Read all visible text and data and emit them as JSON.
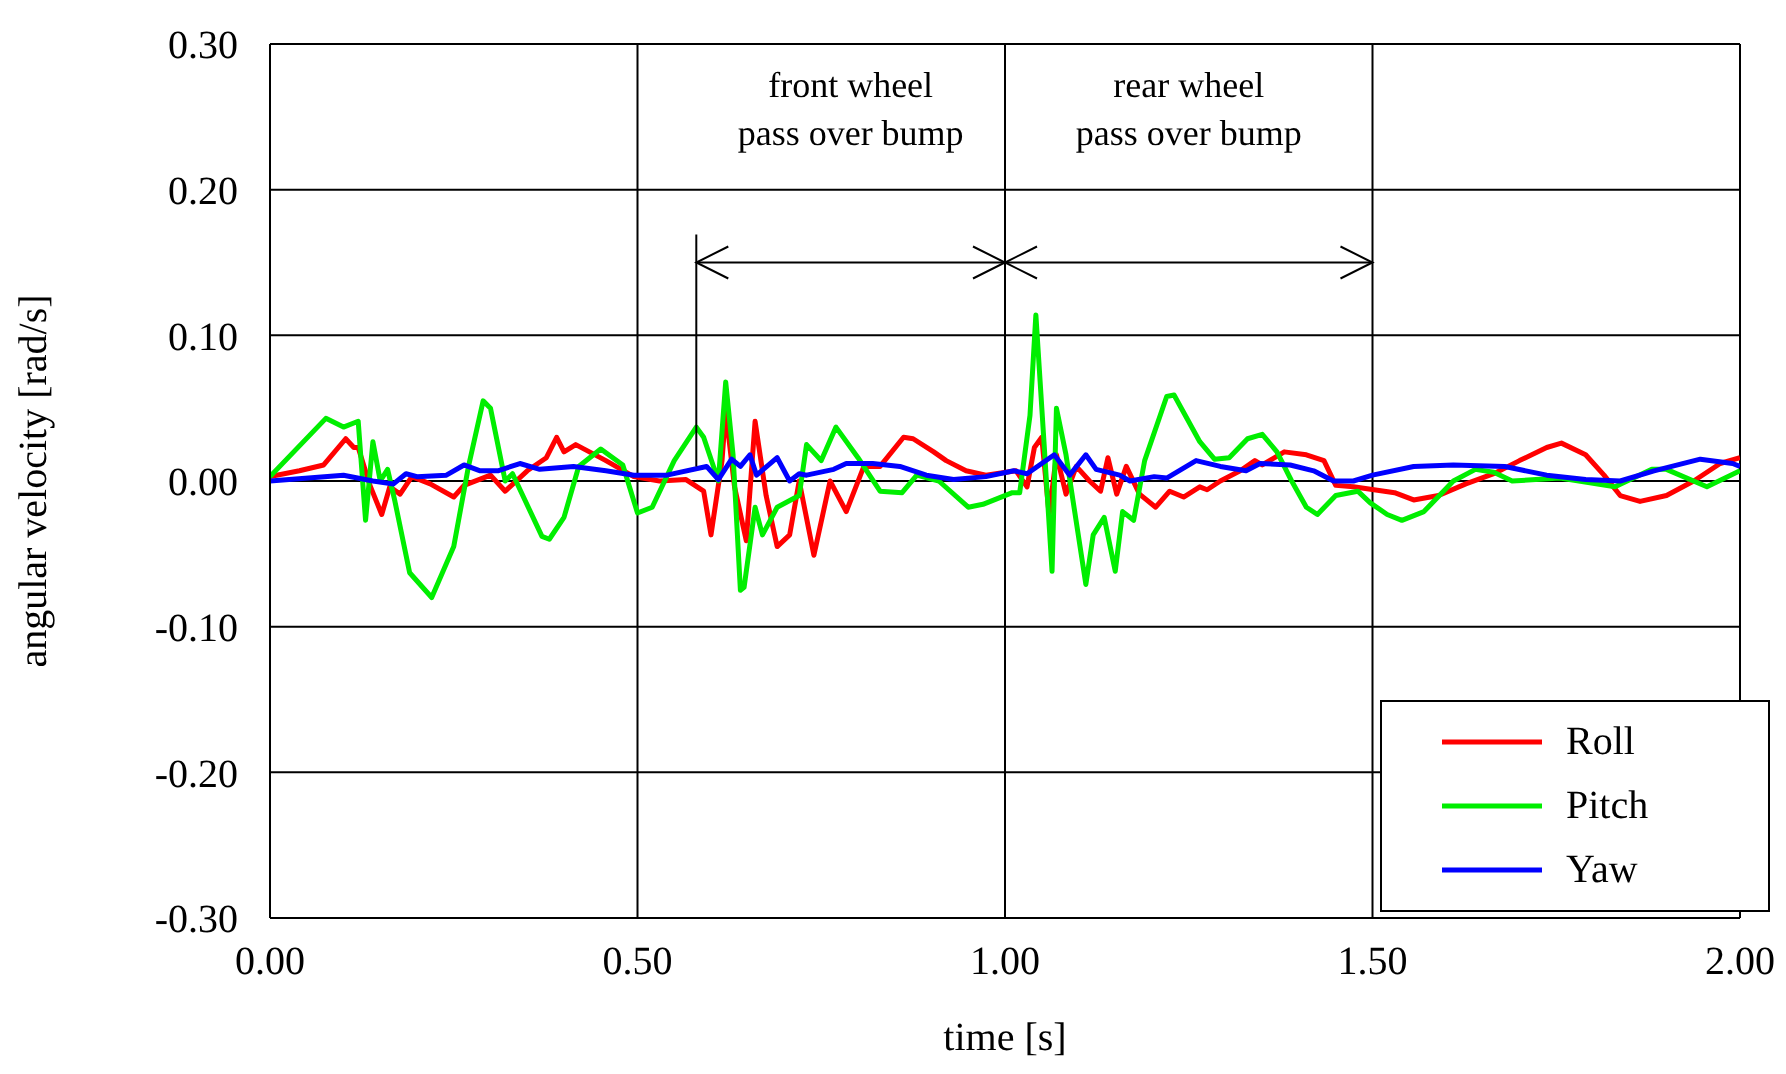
{
  "chart_data": {
    "type": "line",
    "xlabel": "time [s]",
    "ylabel": "angular velocity [rad/s]",
    "xlim": [
      0,
      2
    ],
    "ylim": [
      -0.3,
      0.3
    ],
    "xticks": [
      {
        "value": 0,
        "label": "0.00"
      },
      {
        "value": 0.5,
        "label": "0.50"
      },
      {
        "value": 1,
        "label": "1.00"
      },
      {
        "value": 1.5,
        "label": "1.50"
      },
      {
        "value": 2,
        "label": "2.00"
      }
    ],
    "yticks": [
      {
        "value": -0.3,
        "label": "-0.30"
      },
      {
        "value": -0.2,
        "label": "-0.20"
      },
      {
        "value": -0.1,
        "label": "-0.10"
      },
      {
        "value": 0,
        "label": "0.00"
      },
      {
        "value": 0.1,
        "label": "0.10"
      },
      {
        "value": 0.2,
        "label": "0.20"
      },
      {
        "value": 0.3,
        "label": "0.30"
      }
    ],
    "grid": true,
    "legend": "bottom right",
    "marker": "none",
    "line_style": "solid",
    "annotations": [
      "front wheel\npass over bump",
      "rear wheel\npass over bump"
    ],
    "series": [
      {
        "name": "Roll",
        "color": "#ff0000",
        "x": [
          0,
          0.04,
          0.073,
          0.103,
          0.114,
          0.12,
          0.136,
          0.152,
          0.163,
          0.177,
          0.193,
          0.218,
          0.25,
          0.264,
          0.3,
          0.32,
          0.35,
          0.376,
          0.39,
          0.4,
          0.416,
          0.457,
          0.495,
          0.53,
          0.566,
          0.59,
          0.6,
          0.615,
          0.62,
          0.632,
          0.648,
          0.66,
          0.675,
          0.69,
          0.707,
          0.72,
          0.74,
          0.762,
          0.784,
          0.808,
          0.83,
          0.862,
          0.875,
          0.903,
          0.92,
          0.947,
          0.974,
          1.015,
          1.03,
          1.04,
          1.05,
          1.06,
          1.07,
          1.083,
          1.097,
          1.115,
          1.13,
          1.14,
          1.152,
          1.165,
          1.183,
          1.205,
          1.224,
          1.243,
          1.265,
          1.275,
          1.293,
          1.32,
          1.34,
          1.35,
          1.38,
          1.41,
          1.434,
          1.45,
          1.474,
          1.53,
          1.556,
          1.59,
          1.627,
          1.665,
          1.7,
          1.737,
          1.757,
          1.79,
          1.815,
          1.837,
          1.864,
          1.9,
          1.937,
          1.973,
          2.0
        ],
        "values": [
          0.003,
          0.007,
          0.011,
          0.029,
          0.023,
          0.023,
          -0.003,
          -0.023,
          -0.004,
          -0.009,
          0.003,
          -0.002,
          -0.011,
          -0.003,
          0.004,
          -0.007,
          0.007,
          0.016,
          0.03,
          0.02,
          0.025,
          0.014,
          0.003,
          0,
          0.001,
          -0.007,
          -0.037,
          0.014,
          0.048,
          -0.004,
          -0.041,
          0.041,
          -0.01,
          -0.045,
          -0.037,
          0,
          -0.051,
          0,
          -0.021,
          0.01,
          0.01,
          0.03,
          0.029,
          0.02,
          0.014,
          0.007,
          0.004,
          0.007,
          -0.004,
          0.023,
          0.03,
          -0.023,
          0.018,
          -0.009,
          0.01,
          0,
          -0.007,
          0.016,
          -0.009,
          0.01,
          -0.009,
          -0.018,
          -0.007,
          -0.011,
          -0.004,
          -0.006,
          0,
          0.007,
          0.014,
          0.011,
          0.02,
          0.018,
          0.014,
          -0.003,
          -0.004,
          -0.008,
          -0.013,
          -0.01,
          -0.002,
          0.005,
          0.014,
          0.023,
          0.026,
          0.018,
          0.004,
          -0.01,
          -0.014,
          -0.01,
          0,
          0.012,
          0.016
        ]
      },
      {
        "name": "Pitch",
        "color": "#00ee00",
        "x": [
          0,
          0.076,
          0.1,
          0.12,
          0.13,
          0.14,
          0.15,
          0.16,
          0.17,
          0.19,
          0.22,
          0.25,
          0.27,
          0.29,
          0.3,
          0.32,
          0.33,
          0.37,
          0.38,
          0.4,
          0.42,
          0.45,
          0.48,
          0.5,
          0.52,
          0.55,
          0.58,
          0.59,
          0.61,
          0.62,
          0.63,
          0.64,
          0.645,
          0.66,
          0.67,
          0.69,
          0.72,
          0.73,
          0.75,
          0.77,
          0.8,
          0.83,
          0.86,
          0.88,
          0.91,
          0.95,
          0.97,
          1.01,
          1.02,
          1.034,
          1.042,
          1.053,
          1.064,
          1.07,
          1.083,
          1.11,
          1.12,
          1.135,
          1.15,
          1.16,
          1.175,
          1.19,
          1.22,
          1.23,
          1.265,
          1.285,
          1.305,
          1.33,
          1.35,
          1.37,
          1.39,
          1.41,
          1.425,
          1.45,
          1.48,
          1.497,
          1.52,
          1.54,
          1.57,
          1.61,
          1.64,
          1.665,
          1.69,
          1.755,
          1.83,
          1.88,
          1.9,
          1.955,
          2.0
        ],
        "values": [
          0.003,
          0.043,
          0.037,
          0.041,
          -0.027,
          0.027,
          0,
          0.008,
          -0.014,
          -0.063,
          -0.08,
          -0.045,
          0.01,
          0.055,
          0.05,
          0,
          0.005,
          -0.038,
          -0.04,
          -0.025,
          0.01,
          0.022,
          0.011,
          -0.022,
          -0.018,
          0.014,
          0.037,
          0.03,
          0,
          0.068,
          0.018,
          -0.075,
          -0.073,
          -0.018,
          -0.037,
          -0.018,
          -0.01,
          0.025,
          0.014,
          0.037,
          0.016,
          -0.007,
          -0.008,
          0.004,
          0,
          -0.018,
          -0.016,
          -0.008,
          -0.008,
          0.045,
          0.114,
          0.027,
          -0.062,
          0.05,
          0.018,
          -0.071,
          -0.037,
          -0.025,
          -0.062,
          -0.021,
          -0.027,
          0.014,
          0.058,
          0.059,
          0.027,
          0.015,
          0.016,
          0.029,
          0.032,
          0.02,
          0,
          -0.018,
          -0.023,
          -0.01,
          -0.007,
          -0.015,
          -0.023,
          -0.027,
          -0.021,
          0,
          0.008,
          0.006,
          0,
          0.002,
          -0.004,
          0.008,
          0.008,
          -0.004,
          0.007
        ]
      },
      {
        "name": "Yaw",
        "color": "#0000ff",
        "x": [
          0,
          0.1,
          0.14,
          0.168,
          0.185,
          0.2,
          0.24,
          0.264,
          0.286,
          0.31,
          0.34,
          0.367,
          0.413,
          0.457,
          0.495,
          0.54,
          0.594,
          0.61,
          0.628,
          0.64,
          0.653,
          0.662,
          0.69,
          0.707,
          0.72,
          0.73,
          0.767,
          0.784,
          0.82,
          0.857,
          0.893,
          0.93,
          0.974,
          1.012,
          1.03,
          1.067,
          1.088,
          1.11,
          1.124,
          1.156,
          1.17,
          1.203,
          1.22,
          1.26,
          1.293,
          1.328,
          1.347,
          1.388,
          1.42,
          1.447,
          1.474,
          1.5,
          1.556,
          1.61,
          1.68,
          1.737,
          1.79,
          1.837,
          1.883,
          1.946,
          1.99,
          2.0
        ],
        "values": [
          0,
          0.004,
          0,
          -0.002,
          0.005,
          0.003,
          0.004,
          0.011,
          0.007,
          0.007,
          0.012,
          0.008,
          0.01,
          0.007,
          0.004,
          0.004,
          0.01,
          0.001,
          0.015,
          0.01,
          0.018,
          0.004,
          0.016,
          0,
          0.005,
          0.004,
          0.008,
          0.012,
          0.012,
          0.01,
          0.004,
          0.001,
          0.003,
          0.007,
          0.005,
          0.018,
          0.004,
          0.018,
          0.008,
          0.004,
          0,
          0.003,
          0.002,
          0.014,
          0.01,
          0.007,
          0.012,
          0.011,
          0.007,
          0,
          0,
          0.004,
          0.01,
          0.011,
          0.01,
          0.004,
          0.001,
          0,
          0.007,
          0.015,
          0.012,
          0.01
        ]
      }
    ]
  }
}
